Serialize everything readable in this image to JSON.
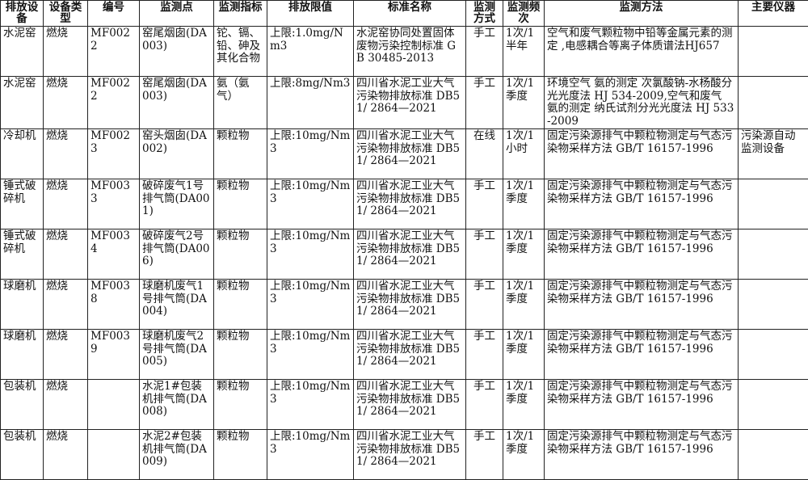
{
  "headers": [
    "排放设备",
    "设备类型",
    "编号",
    "监测点",
    "监测指标",
    "排放限值",
    "标准名称",
    "监测方式",
    "监测频次",
    "监测方法",
    "主要仪器"
  ],
  "rows": [
    [
      "水泥窑",
      "燃烧",
      "MF0022",
      "窑尾烟囱(DA003)",
      "铊、镉、铅、砷及其化合物",
      "上限:1.0mg/Nm3",
      "水泥窑协同处置固体废物污染控制标准 GB 30485-2013",
      "手工",
      "1次/1半年",
      "空气和废气颗粒物中铅等金属元素的测定 ,电感耦合等离子体质谱法HJ657",
      ""
    ],
    [
      "水泥窑",
      "燃烧",
      "MF0022",
      "窑尾烟囱(DA003)",
      "氨（氨气）",
      "上限:8mg/Nm3",
      "四川省水泥工业大气污染物排放标准 DB51/ 2864—2021",
      "手工",
      "1次/1季度",
      "环境空气 氨的测定 次氯酸钠-水杨酸分光光度法 HJ 534-2009,空气和废气 氨的测定 纳氏试剂分光光度法 HJ 533-2009",
      ""
    ],
    [
      "冷却机",
      "燃烧",
      "MF0023",
      "窑头烟囱(DA002)",
      "颗粒物",
      "上限:10mg/Nm3",
      "四川省水泥工业大气污染物排放标准 DB51/ 2864—2021",
      "在线",
      "1次/1小时",
      "固定污染源排气中颗粒物测定与气态污染物采样方法 GB/T 16157-1996",
      "污染源自动监测设备"
    ],
    [
      "锤式破碎机",
      "燃烧",
      "MF0033",
      "破碎废气1号排气筒(DA001)",
      "颗粒物",
      "上限:10mg/Nm3",
      "四川省水泥工业大气污染物排放标准 DB51/ 2864—2021",
      "手工",
      "1次/1季度",
      "固定污染源排气中颗粒物测定与气态污染物采样方法 GB/T 16157-1996",
      ""
    ],
    [
      "锤式破碎机",
      "燃烧",
      "MF0034",
      "破碎废气2号排气筒(DA006)",
      "颗粒物",
      "上限:10mg/Nm3",
      "四川省水泥工业大气污染物排放标准 DB51/ 2864—2021",
      "手工",
      "1次/1季度",
      "固定污染源排气中颗粒物测定与气态污染物采样方法 GB/T 16157-1996",
      ""
    ],
    [
      "球磨机",
      "燃烧",
      "MF0038",
      "球磨机废气1号排气筒(DA004)",
      "颗粒物",
      "上限:10mg/Nm3",
      "四川省水泥工业大气污染物排放标准 DB51/ 2864—2021",
      "手工",
      "1次/1季度",
      "固定污染源排气中颗粒物测定与气态污染物采样方法 GB/T 16157-1996",
      ""
    ],
    [
      "球磨机",
      "燃烧",
      "MF0039",
      "球磨机废气2号排气筒(DA005)",
      "颗粒物",
      "上限:10mg/Nm3",
      "四川省水泥工业大气污染物排放标准 DB51/ 2864—2021",
      "手工",
      "1次/1季度",
      "固定污染源排气中颗粒物测定与气态污染物采样方法 GB/T 16157-1996",
      ""
    ],
    [
      "包装机",
      "燃烧",
      "",
      "水泥1#包装机排气筒(DA008)",
      "颗粒物",
      "上限:10mg/Nm3",
      "四川省水泥工业大气污染物排放标准 DB51/ 2864—2021",
      "手工",
      "1次/1季度",
      "固定污染源排气中颗粒物测定与气态污染物采样方法 GB/T 16157-1996",
      ""
    ],
    [
      "包装机",
      "燃烧",
      "",
      "水泥2#包装机排气筒(DA009)",
      "颗粒物",
      "上限:10mg/Nm3",
      "四川省水泥工业大气污染物排放标准 DB51/ 2864—2021",
      "手工",
      "1次/1季度",
      "固定污染源排气中颗粒物测定与气态污染物采样方法 GB/T 16157-1996",
      ""
    ]
  ]
}
